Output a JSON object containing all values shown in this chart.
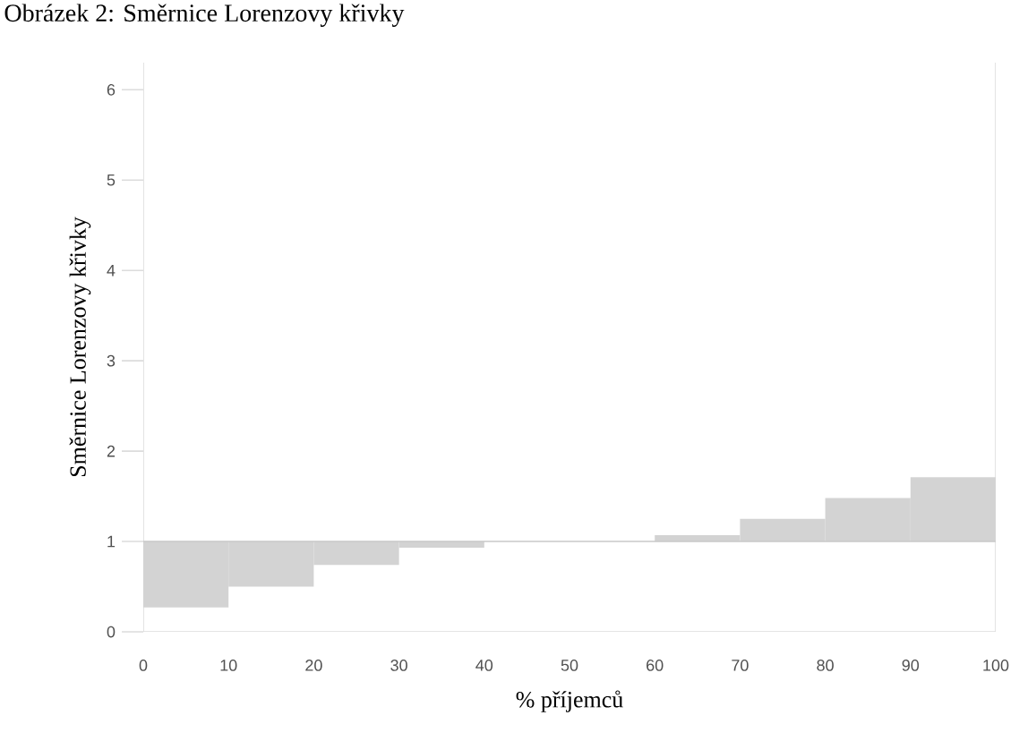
{
  "chart_data": {
    "type": "bar",
    "title": "Obrázek 2: Směrnice Lorenzovy křivky",
    "xlabel": "% příjemců",
    "ylabel": "Směrnice Lorenzovy křivky",
    "x": [
      5,
      15,
      25,
      35,
      45,
      55,
      65,
      75,
      85,
      95
    ],
    "base": [
      1,
      1,
      1,
      1,
      null,
      null,
      1,
      1,
      1,
      1
    ],
    "values": [
      -0.73,
      -0.5,
      -0.26,
      -0.07,
      null,
      null,
      0.07,
      0.25,
      0.48,
      0.71
    ],
    "color": "#d3d3d3",
    "xlim": [
      0,
      100
    ],
    "xticks": [
      0,
      10,
      20,
      30,
      40,
      50,
      60,
      70,
      80,
      90,
      100
    ],
    "ylim": [
      0,
      6.3
    ],
    "yticks": [
      0,
      1,
      2,
      3,
      4,
      5,
      6
    ],
    "ref_lines": [
      {
        "axis": "y",
        "value": 1,
        "color": "#c8c8c8"
      }
    ],
    "grid": false
  }
}
